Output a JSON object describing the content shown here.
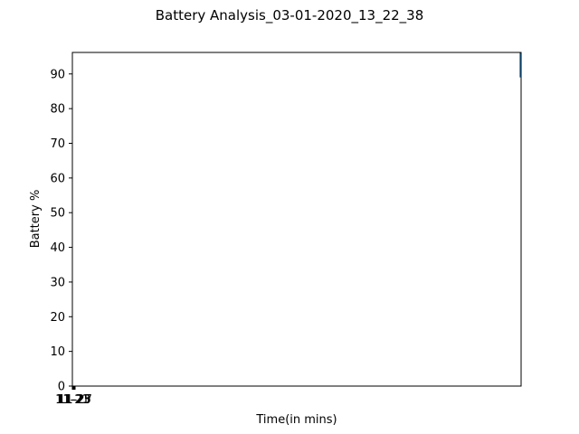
{
  "chart_data": {
    "type": "line",
    "title": "Battery Analysis_03-01-2020_13_22_38",
    "xlabel": "Time(in mins)",
    "ylabel": "Battery %",
    "ylim": [
      0,
      96.2
    ],
    "yticks": [
      0,
      10,
      20,
      30,
      40,
      50,
      60,
      70,
      80,
      90
    ],
    "xticks": [
      "11-21",
      "11-23",
      "11-25",
      "11-27"
    ],
    "grid": false,
    "series": [
      {
        "color": "#1f77b4",
        "x": [
          1.0,
          1.0
        ],
        "y": [
          96.2,
          89.0
        ]
      }
    ]
  }
}
